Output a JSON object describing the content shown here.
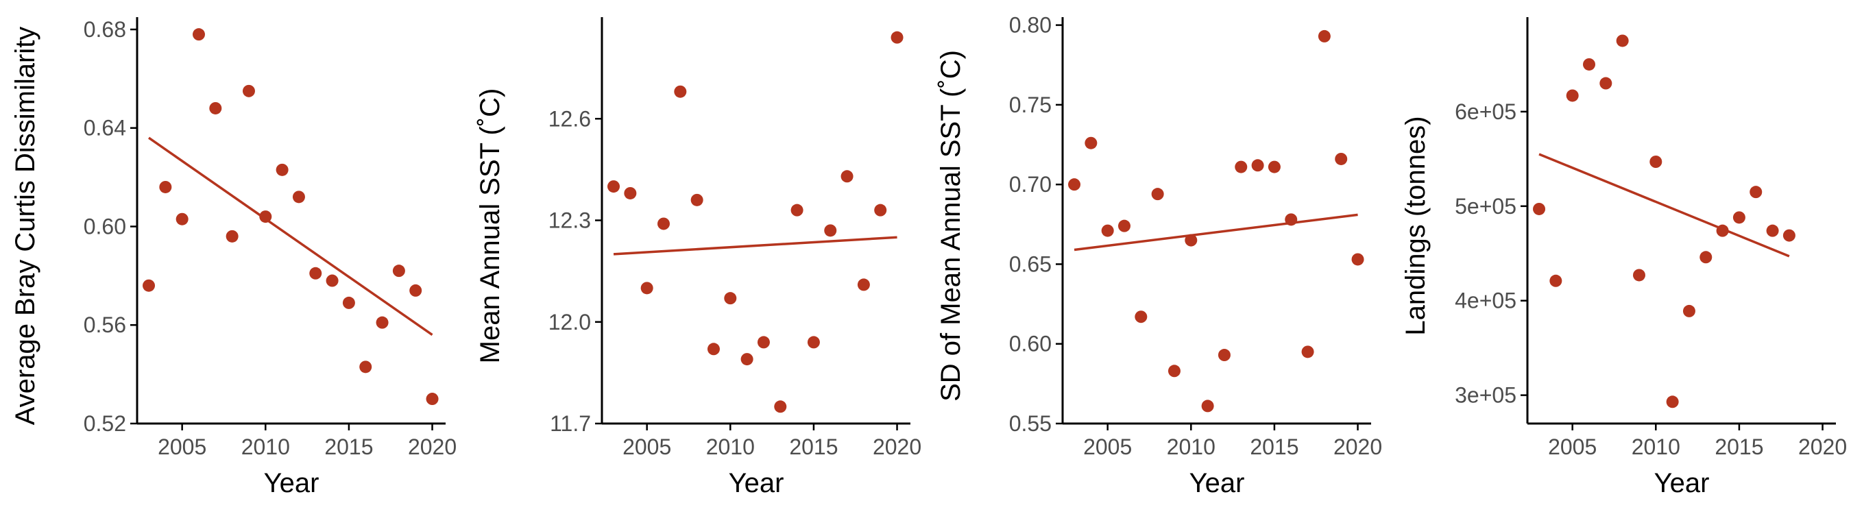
{
  "colors": {
    "point": "#B5351E",
    "line": "#B5351E",
    "axis": "#000000",
    "tick_text": "#4d4d4d"
  },
  "chart_data": [
    {
      "type": "scatter",
      "xlabel": "Year",
      "ylabel": "Average Bray Curtis Dissimilarity",
      "xlim": [
        2002.3,
        2020.8
      ],
      "ylim": [
        0.52,
        0.685
      ],
      "xticks": [
        2005,
        2010,
        2015,
        2020
      ],
      "yticks": [
        0.52,
        0.56,
        0.6,
        0.64,
        0.68
      ],
      "ytick_labels": [
        "0.52",
        "0.56",
        "0.60",
        "0.64",
        "0.68"
      ],
      "points": [
        {
          "x": 2003,
          "y": 0.576
        },
        {
          "x": 2004,
          "y": 0.616
        },
        {
          "x": 2005,
          "y": 0.603
        },
        {
          "x": 2006,
          "y": 0.678
        },
        {
          "x": 2007,
          "y": 0.648
        },
        {
          "x": 2008,
          "y": 0.596
        },
        {
          "x": 2009,
          "y": 0.655
        },
        {
          "x": 2010,
          "y": 0.604
        },
        {
          "x": 2011,
          "y": 0.623
        },
        {
          "x": 2012,
          "y": 0.612
        },
        {
          "x": 2013,
          "y": 0.581
        },
        {
          "x": 2014,
          "y": 0.578
        },
        {
          "x": 2015,
          "y": 0.569
        },
        {
          "x": 2016,
          "y": 0.543
        },
        {
          "x": 2017,
          "y": 0.561
        },
        {
          "x": 2018,
          "y": 0.582
        },
        {
          "x": 2019,
          "y": 0.574
        },
        {
          "x": 2020,
          "y": 0.53
        }
      ],
      "trend": {
        "x": [
          2003,
          2020
        ],
        "y": [
          0.636,
          0.556
        ]
      }
    },
    {
      "type": "scatter",
      "xlabel": "Year",
      "ylabel": "Mean Annual SST (˚C)",
      "xlim": [
        2002.3,
        2020.8
      ],
      "ylim": [
        11.7,
        12.9
      ],
      "xticks": [
        2005,
        2010,
        2015,
        2020
      ],
      "yticks": [
        11.7,
        12.0,
        12.3,
        12.6
      ],
      "ytick_labels": [
        "11.7",
        "12.0",
        "12.3",
        "12.6"
      ],
      "points": [
        {
          "x": 2003,
          "y": 12.4
        },
        {
          "x": 2004,
          "y": 12.38
        },
        {
          "x": 2005,
          "y": 12.1
        },
        {
          "x": 2006,
          "y": 12.29
        },
        {
          "x": 2007,
          "y": 12.68
        },
        {
          "x": 2008,
          "y": 12.36
        },
        {
          "x": 2009,
          "y": 11.92
        },
        {
          "x": 2010,
          "y": 12.07
        },
        {
          "x": 2011,
          "y": 11.89
        },
        {
          "x": 2012,
          "y": 11.94
        },
        {
          "x": 2013,
          "y": 11.75
        },
        {
          "x": 2014,
          "y": 12.33
        },
        {
          "x": 2015,
          "y": 11.94
        },
        {
          "x": 2016,
          "y": 12.27
        },
        {
          "x": 2017,
          "y": 12.43
        },
        {
          "x": 2018,
          "y": 12.11
        },
        {
          "x": 2019,
          "y": 12.33
        },
        {
          "x": 2020,
          "y": 12.84
        }
      ],
      "trend": {
        "x": [
          2003,
          2020
        ],
        "y": [
          12.2,
          12.25
        ]
      }
    },
    {
      "type": "scatter",
      "xlabel": "Year",
      "ylabel": "SD of Mean Annual SST (˚C)",
      "xlim": [
        2002.3,
        2020.8
      ],
      "ylim": [
        0.55,
        0.805
      ],
      "xticks": [
        2005,
        2010,
        2015,
        2020
      ],
      "yticks": [
        0.55,
        0.6,
        0.65,
        0.7,
        0.75,
        0.8
      ],
      "ytick_labels": [
        "0.55",
        "0.60",
        "0.65",
        "0.70",
        "0.75",
        "0.80"
      ],
      "points": [
        {
          "x": 2003,
          "y": 0.7
        },
        {
          "x": 2004,
          "y": 0.726
        },
        {
          "x": 2005,
          "y": 0.671
        },
        {
          "x": 2006,
          "y": 0.674
        },
        {
          "x": 2007,
          "y": 0.617
        },
        {
          "x": 2008,
          "y": 0.694
        },
        {
          "x": 2009,
          "y": 0.583
        },
        {
          "x": 2010,
          "y": 0.665
        },
        {
          "x": 2011,
          "y": 0.561
        },
        {
          "x": 2012,
          "y": 0.593
        },
        {
          "x": 2013,
          "y": 0.711
        },
        {
          "x": 2014,
          "y": 0.712
        },
        {
          "x": 2015,
          "y": 0.711
        },
        {
          "x": 2016,
          "y": 0.678
        },
        {
          "x": 2017,
          "y": 0.595
        },
        {
          "x": 2018,
          "y": 0.793
        },
        {
          "x": 2019,
          "y": 0.716
        },
        {
          "x": 2020,
          "y": 0.653
        }
      ],
      "trend": {
        "x": [
          2003,
          2020
        ],
        "y": [
          0.659,
          0.681
        ]
      }
    },
    {
      "type": "scatter",
      "xlabel": "Year",
      "ylabel": "Landings (tonnes)",
      "xlim": [
        2002.3,
        2020.8
      ],
      "ylim": [
        270000,
        700000
      ],
      "xticks": [
        2005,
        2010,
        2015,
        2020
      ],
      "yticks": [
        300000,
        400000,
        500000,
        600000
      ],
      "ytick_labels": [
        "3e+05",
        "4e+05",
        "5e+05",
        "6e+05"
      ],
      "points": [
        {
          "x": 2003,
          "y": 497000
        },
        {
          "x": 2004,
          "y": 421000
        },
        {
          "x": 2005,
          "y": 617000
        },
        {
          "x": 2006,
          "y": 650000
        },
        {
          "x": 2007,
          "y": 630000
        },
        {
          "x": 2008,
          "y": 675000
        },
        {
          "x": 2009,
          "y": 427000
        },
        {
          "x": 2010,
          "y": 547000
        },
        {
          "x": 2011,
          "y": 293000
        },
        {
          "x": 2012,
          "y": 389000
        },
        {
          "x": 2013,
          "y": 446000
        },
        {
          "x": 2014,
          "y": 474000
        },
        {
          "x": 2015,
          "y": 488000
        },
        {
          "x": 2016,
          "y": 515000
        },
        {
          "x": 2017,
          "y": 474000
        },
        {
          "x": 2018,
          "y": 469000
        }
      ],
      "trend": {
        "x": [
          2003,
          2018
        ],
        "y": [
          555000,
          447000
        ]
      }
    }
  ]
}
